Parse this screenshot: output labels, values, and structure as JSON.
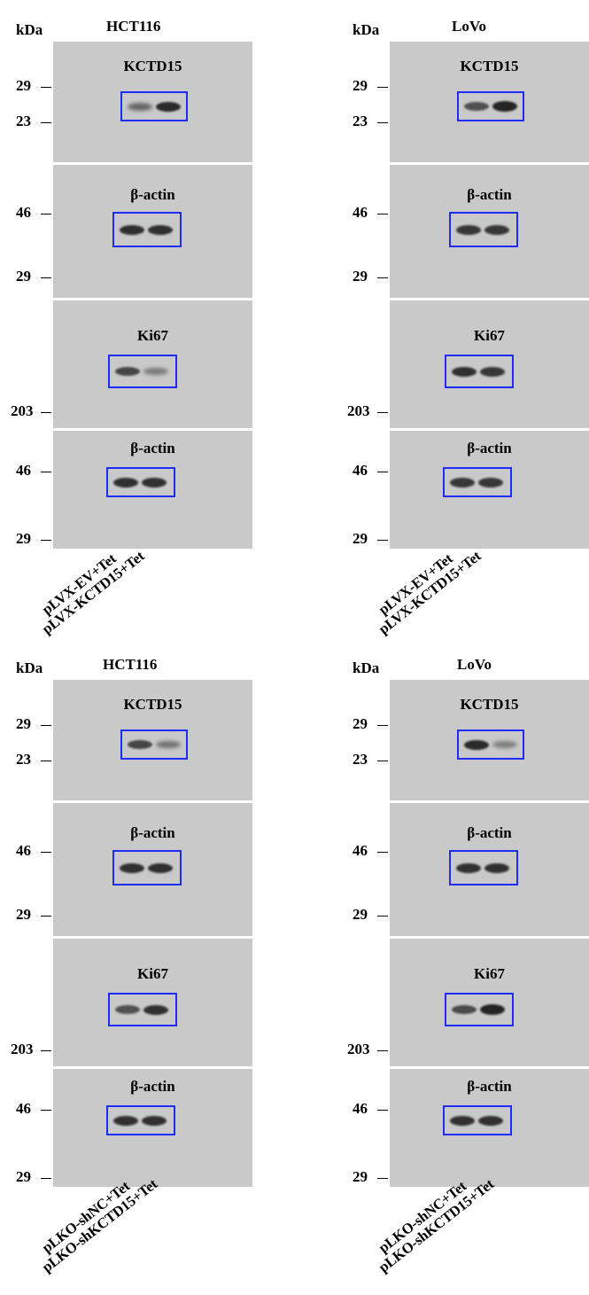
{
  "panels": [
    {
      "id": "top-left",
      "kda": "kDa",
      "cell_line": "HCT116",
      "lanes": [
        "pLVX-EV+Tet",
        "pLVX-KCTD15+Tet"
      ],
      "blots": [
        {
          "label": "KCTD15",
          "markers": [
            "29",
            "23"
          ],
          "band_intensity": [
            0.45,
            0.9
          ]
        },
        {
          "label": "β-actin",
          "markers": [
            "46",
            "29"
          ],
          "band_intensity": [
            0.85,
            0.85
          ]
        },
        {
          "label": "Ki67",
          "markers": [
            "203"
          ],
          "band_intensity": [
            0.7,
            0.3
          ]
        },
        {
          "label": "β-actin",
          "markers": [
            "46",
            "29"
          ],
          "band_intensity": [
            0.85,
            0.85
          ]
        }
      ]
    },
    {
      "id": "top-right",
      "kda": "kDa",
      "cell_line": "LoVo",
      "lanes": [
        "pLVX-EV+Tet",
        "pLVX-KCTD15+Tet"
      ],
      "blots": [
        {
          "label": "KCTD15",
          "markers": [
            "29",
            "23"
          ],
          "band_intensity": [
            0.6,
            0.95
          ]
        },
        {
          "label": "β-actin",
          "markers": [
            "46",
            "29"
          ],
          "band_intensity": [
            0.8,
            0.8
          ]
        },
        {
          "label": "Ki67",
          "markers": [
            "203"
          ],
          "band_intensity": [
            0.85,
            0.8
          ]
        },
        {
          "label": "β-actin",
          "markers": [
            "46",
            "29"
          ],
          "band_intensity": [
            0.8,
            0.8
          ]
        }
      ]
    },
    {
      "id": "bottom-left",
      "kda": "kDa",
      "cell_line": "HCT116",
      "lanes": [
        "pLKO-shNC+Tet",
        "pLKO-shKCTD15+Tet"
      ],
      "blots": [
        {
          "label": "KCTD15",
          "markers": [
            "29",
            "23"
          ],
          "band_intensity": [
            0.7,
            0.35
          ]
        },
        {
          "label": "β-actin",
          "markers": [
            "46",
            "29"
          ],
          "band_intensity": [
            0.85,
            0.85
          ]
        },
        {
          "label": "Ki67",
          "markers": [
            "203"
          ],
          "band_intensity": [
            0.6,
            0.85
          ]
        },
        {
          "label": "β-actin",
          "markers": [
            "46",
            "29"
          ],
          "band_intensity": [
            0.85,
            0.85
          ]
        }
      ]
    },
    {
      "id": "bottom-right",
      "kda": "kDa",
      "cell_line": "LoVo",
      "lanes": [
        "pLKO-shNC+Tet",
        "pLKO-shKCTD15+Tet"
      ],
      "blots": [
        {
          "label": "KCTD15",
          "markers": [
            "29",
            "23"
          ],
          "band_intensity": [
            0.9,
            0.25
          ]
        },
        {
          "label": "β-actin",
          "markers": [
            "46",
            "29"
          ],
          "band_intensity": [
            0.85,
            0.85
          ]
        },
        {
          "label": "Ki67",
          "markers": [
            "203"
          ],
          "band_intensity": [
            0.65,
            0.95
          ]
        },
        {
          "label": "β-actin",
          "markers": [
            "46",
            "29"
          ],
          "band_intensity": [
            0.85,
            0.85
          ]
        }
      ]
    }
  ],
  "colors": {
    "box": "#1c2cf2",
    "membrane": "#c9c9c9",
    "band": "#1e1e1e"
  }
}
